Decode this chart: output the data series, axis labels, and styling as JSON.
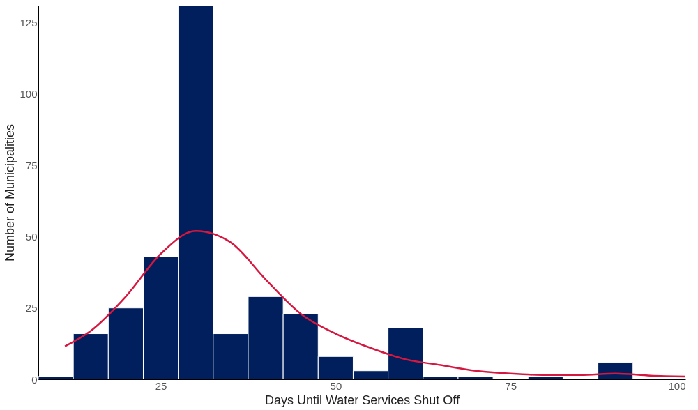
{
  "chart_data": {
    "type": "histogram",
    "xlabel": "Days Until Water Services Shut Off",
    "ylabel": "Number of Municipalities",
    "bins": [
      7.5,
      12.5,
      17.5,
      22.5,
      27.5,
      32.5,
      37.5,
      42.5,
      47.5,
      52.5,
      57.5,
      62.5,
      67.5,
      72.5,
      77.5,
      82.5,
      87.5,
      92.5,
      97.5
    ],
    "values": [
      1,
      16,
      25,
      43,
      131,
      16,
      29,
      23,
      8,
      3,
      18,
      1,
      1,
      0,
      1,
      0,
      6,
      0
    ],
    "color": "#001f5c",
    "series": [
      {
        "type": "line",
        "color": "#d6173f",
        "x": [
          11.3,
          15,
          20,
          25,
          30,
          35,
          40,
          45,
          50,
          55,
          60,
          65,
          70,
          75,
          80,
          85,
          90,
          95,
          100
        ],
        "values": [
          11.6,
          17,
          29,
          44,
          52,
          48,
          35,
          23,
          16,
          11,
          7,
          5,
          3,
          2,
          1.5,
          1.5,
          2,
          1.3,
          1
        ]
      }
    ],
    "xlim": [
      7.5,
      100
    ],
    "xticks": [
      25,
      50,
      75,
      100
    ],
    "ylim": [
      0,
      131
    ],
    "yticks": [
      0,
      25,
      50,
      75,
      100,
      125
    ],
    "grid": false
  }
}
